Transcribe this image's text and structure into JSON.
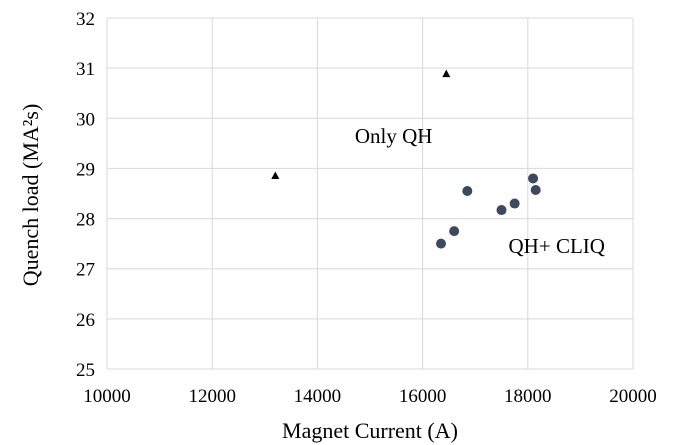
{
  "chart_data": {
    "type": "scatter",
    "xlabel": "Magnet Current (A)",
    "ylabel": "Quench load (MA²s)",
    "xlim": [
      10000,
      20000
    ],
    "ylim": [
      25,
      32
    ],
    "x_ticks": [
      10000,
      12000,
      14000,
      16000,
      18000,
      20000
    ],
    "y_ticks": [
      25,
      26,
      27,
      28,
      29,
      30,
      31,
      32
    ],
    "grid": true,
    "series": [
      {
        "name": "Only QH",
        "marker": "triangle",
        "color": "#000000",
        "points": [
          {
            "x": 13200,
            "y": 28.85
          },
          {
            "x": 16450,
            "y": 30.88
          }
        ]
      },
      {
        "name": "QH+ CLIQ",
        "marker": "circle",
        "color": "#3b4a5e",
        "points": [
          {
            "x": 16350,
            "y": 27.5
          },
          {
            "x": 16600,
            "y": 27.75
          },
          {
            "x": 16850,
            "y": 28.55
          },
          {
            "x": 17500,
            "y": 28.17
          },
          {
            "x": 17750,
            "y": 28.3
          },
          {
            "x": 18100,
            "y": 28.8
          },
          {
            "x": 18150,
            "y": 28.57
          }
        ]
      }
    ],
    "annotations": [
      {
        "text": "Only QH",
        "x": 15450,
        "y": 29.65
      },
      {
        "text": "QH+ CLIQ",
        "x": 18550,
        "y": 27.45
      }
    ]
  }
}
